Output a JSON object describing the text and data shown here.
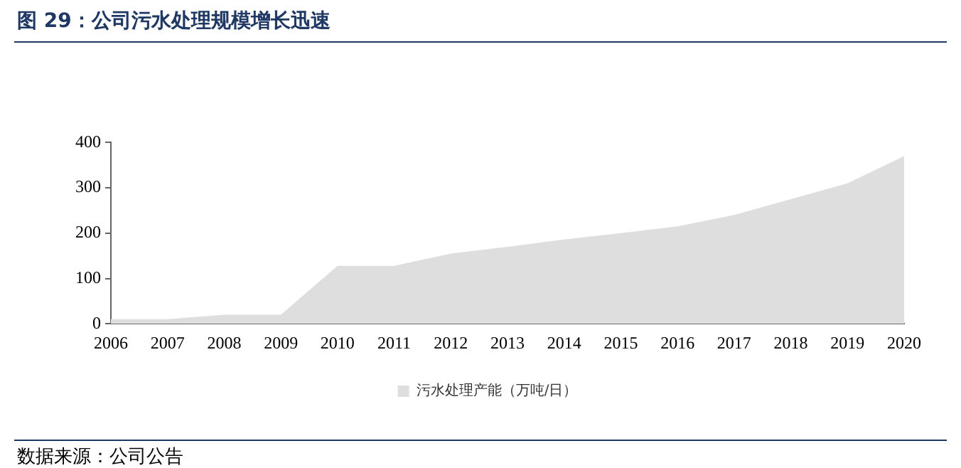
{
  "chart_data": {
    "type": "area",
    "title": "图 29：公司污水处理规模增长迅速",
    "categories": [
      "2006",
      "2007",
      "2008",
      "2009",
      "2010",
      "2011",
      "2012",
      "2013",
      "2014",
      "2015",
      "2016",
      "2017",
      "2018",
      "2019",
      "2020"
    ],
    "series": [
      {
        "name": "污水处理产能（万吨/日）",
        "color": "#dedede",
        "values": [
          10,
          10,
          20,
          20,
          128,
          128,
          155,
          170,
          186,
          200,
          215,
          240,
          275,
          310,
          370
        ]
      }
    ],
    "ylim": [
      0,
      400
    ],
    "yticks": [
      0,
      100,
      200,
      300,
      400
    ],
    "grid": false,
    "legend": "bottom",
    "annotations": [
      "数据来源：公司公告"
    ]
  }
}
